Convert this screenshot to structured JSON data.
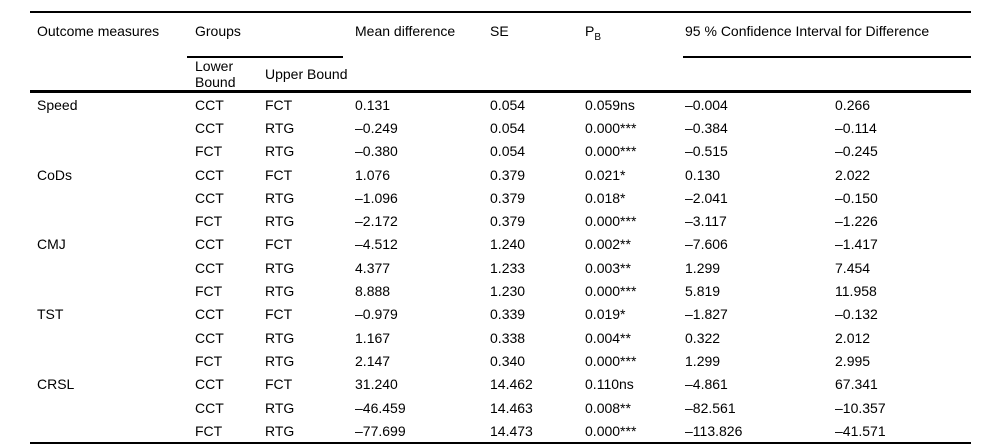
{
  "table": {
    "headers": {
      "outcome": "Outcome measures",
      "groups": "Groups",
      "mean_diff": "Mean difference",
      "se": "SE",
      "p_label": "P",
      "p_sub": "B",
      "ci": "95 % Confidence Interval for Difference",
      "lower": "Lower Bound",
      "upper": "Upper Bound"
    },
    "rows": [
      {
        "outcome": "Speed",
        "g1": "CCT",
        "g2": "FCT",
        "mean": "0.131",
        "se": "0.054",
        "p": "0.059ns",
        "lower": "–0.004",
        "upper": "0.266"
      },
      {
        "outcome": "",
        "g1": "CCT",
        "g2": "RTG",
        "mean": "–0.249",
        "se": "0.054",
        "p": "0.000***",
        "lower": "–0.384",
        "upper": "–0.114"
      },
      {
        "outcome": "",
        "g1": "FCT",
        "g2": "RTG",
        "mean": "–0.380",
        "se": "0.054",
        "p": "0.000***",
        "lower": "–0.515",
        "upper": "–0.245"
      },
      {
        "outcome": "CoDs",
        "g1": "CCT",
        "g2": "FCT",
        "mean": "1.076",
        "se": "0.379",
        "p": "0.021*",
        "lower": "0.130",
        "upper": "2.022"
      },
      {
        "outcome": "",
        "g1": "CCT",
        "g2": "RTG",
        "mean": "–1.096",
        "se": "0.379",
        "p": "0.018*",
        "lower": "–2.041",
        "upper": "–0.150"
      },
      {
        "outcome": "",
        "g1": "FCT",
        "g2": "RTG",
        "mean": "–2.172",
        "se": "0.379",
        "p": "0.000***",
        "lower": "–3.117",
        "upper": "–1.226"
      },
      {
        "outcome": "CMJ",
        "g1": "CCT",
        "g2": "FCT",
        "mean": "–4.512",
        "se": "1.240",
        "p": "0.002**",
        "lower": "–7.606",
        "upper": "–1.417"
      },
      {
        "outcome": "",
        "g1": "CCT",
        "g2": "RTG",
        "mean": "4.377",
        "se": "1.233",
        "p": "0.003**",
        "lower": "1.299",
        "upper": "7.454"
      },
      {
        "outcome": "",
        "g1": "FCT",
        "g2": "RTG",
        "mean": "8.888",
        "se": "1.230",
        "p": "0.000***",
        "lower": "5.819",
        "upper": "11.958"
      },
      {
        "outcome": "TST",
        "g1": "CCT",
        "g2": "FCT",
        "mean": "–0.979",
        "se": "0.339",
        "p": "0.019*",
        "lower": "–1.827",
        "upper": "–0.132"
      },
      {
        "outcome": "",
        "g1": "CCT",
        "g2": "RTG",
        "mean": "1.167",
        "se": "0.338",
        "p": "0.004**",
        "lower": "0.322",
        "upper": "2.012"
      },
      {
        "outcome": "",
        "g1": "FCT",
        "g2": "RTG",
        "mean": "2.147",
        "se": "0.340",
        "p": "0.000***",
        "lower": "1.299",
        "upper": "2.995"
      },
      {
        "outcome": "CRSL",
        "g1": "CCT",
        "g2": "FCT",
        "mean": "31.240",
        "se": "14.462",
        "p": "0.110ns",
        "lower": "–4.861",
        "upper": "67.341"
      },
      {
        "outcome": "",
        "g1": "CCT",
        "g2": "RTG",
        "mean": "–46.459",
        "se": "14.463",
        "p": "0.008**",
        "lower": "–82.561",
        "upper": "–10.357"
      },
      {
        "outcome": "",
        "g1": "FCT",
        "g2": "RTG",
        "mean": "–77.699",
        "se": "14.473",
        "p": "0.000***",
        "lower": "–113.826",
        "upper": "–41.571"
      }
    ]
  },
  "colors": {
    "text": "#000000",
    "background": "#ffffff",
    "rule": "#000000"
  }
}
